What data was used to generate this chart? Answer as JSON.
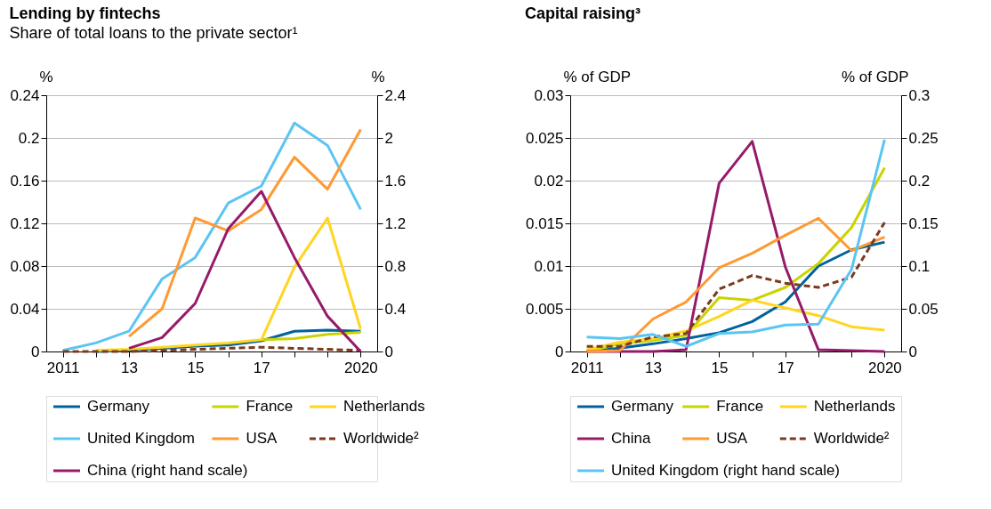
{
  "chart_data": [
    {
      "type": "line",
      "title": "Lending by fintechs",
      "subtitle": "Share of total loans to the private sector¹",
      "ylabel": "%",
      "y2label": "%",
      "categories": [
        "2011",
        null,
        "13",
        null,
        "15",
        null,
        "17",
        null,
        null,
        "2020"
      ],
      "ylim": [
        0,
        0.24
      ],
      "yticks": [
        0,
        0.04,
        0.08,
        0.12,
        0.16,
        0.2,
        0.24
      ],
      "y2lim": [
        0,
        2.4
      ],
      "y2ticks": [
        0,
        0.4,
        0.8,
        1.2,
        1.6,
        2.0,
        2.4
      ],
      "grid": "y",
      "legend": "bottom",
      "marker": "none",
      "series": [
        {
          "name": "Germany",
          "color": "#00629b",
          "values": [
            null,
            0,
            0.001,
            0.003,
            0.005,
            0.006,
            0.01,
            0.019,
            0.02,
            0.019
          ]
        },
        {
          "name": "France",
          "color": "#c8d400",
          "values": [
            null,
            null,
            null,
            null,
            null,
            null,
            0.011,
            0.012,
            0.016,
            0.018
          ]
        },
        {
          "name": "Netherlands",
          "color": "#ffd520",
          "values": [
            null,
            0.001,
            0.002,
            0.004,
            0.006,
            0.008,
            0.011,
            0.079,
            0.125,
            0.021
          ]
        },
        {
          "name": "United Kingdom",
          "color": "#5bc5f2",
          "values": [
            0.001,
            0.008,
            0.019,
            0.068,
            0.088,
            0.139,
            0.155,
            0.214,
            0.193,
            0.133
          ]
        },
        {
          "name": "USA",
          "color": "#ff9933",
          "values": [
            null,
            null,
            0.014,
            0.04,
            0.125,
            0.113,
            0.133,
            0.182,
            0.152,
            0.208
          ]
        },
        {
          "name": "Worldwide²",
          "color": "#7b3a1e",
          "line_style": "dashed",
          "values": [
            0,
            0,
            0,
            0.001,
            0.002,
            0.003,
            0.004,
            0.003,
            0.002,
            0.001
          ]
        },
        {
          "name": "China (right hand scale)",
          "color": "#951b6a",
          "axis": "y2",
          "values": [
            null,
            null,
            0.03,
            0.13,
            0.45,
            1.15,
            1.5,
            0.88,
            0.33,
            0
          ]
        }
      ]
    },
    {
      "type": "line",
      "title": "Capital raising³",
      "ylabel": "% of GDP",
      "y2label": "% of GDP",
      "categories": [
        "2011",
        null,
        "13",
        null,
        "15",
        null,
        "17",
        null,
        null,
        "2020"
      ],
      "ylim": [
        0,
        0.03
      ],
      "yticks": [
        0,
        0.005,
        0.01,
        0.015,
        0.02,
        0.025,
        0.03
      ],
      "y2lim": [
        0,
        0.3
      ],
      "y2ticks": [
        0,
        0.05,
        0.1,
        0.15,
        0.2,
        0.25,
        0.3
      ],
      "grid": "y",
      "legend": "bottom",
      "marker": "none",
      "series": [
        {
          "name": "Germany",
          "color": "#00629b",
          "values": [
            0,
            0.0004,
            0.0009,
            0.0015,
            0.0022,
            0.0035,
            0.0058,
            0.01,
            0.0119,
            0.0128
          ]
        },
        {
          "name": "France",
          "color": "#c8d400",
          "values": [
            0,
            0.0009,
            0.0013,
            0.0019,
            0.0063,
            0.006,
            0.0075,
            0.0103,
            0.0145,
            0.0215
          ]
        },
        {
          "name": "Netherlands",
          "color": "#ffd520",
          "values": [
            0.0002,
            0.0011,
            0.0015,
            0.0024,
            0.0041,
            0.006,
            0.0051,
            0.0042,
            0.0029,
            0.0025
          ]
        },
        {
          "name": "China",
          "color": "#951b6a",
          "values": [
            0,
            0,
            0,
            0.0002,
            0.0197,
            0.0246,
            0.0099,
            0.0002,
            0.0001,
            0
          ]
        },
        {
          "name": "USA",
          "color": "#ff9933",
          "values": [
            0,
            0.0001,
            0.0038,
            0.0058,
            0.0098,
            0.0115,
            0.0136,
            0.0156,
            0.0118,
            0.0134
          ]
        },
        {
          "name": "Worldwide²",
          "color": "#7b3a1e",
          "line_style": "dashed",
          "values": [
            0.0006,
            0.0006,
            0.0017,
            0.0021,
            0.0073,
            0.0089,
            0.008,
            0.0075,
            0.0087,
            0.0151
          ]
        },
        {
          "name": "United Kingdom (right hand scale)",
          "color": "#5bc5f2",
          "axis": "y2",
          "values": [
            0.017,
            0.015,
            0.02,
            0.006,
            0.021,
            0.023,
            0.031,
            0.032,
            0.096,
            0.248
          ]
        }
      ]
    }
  ]
}
